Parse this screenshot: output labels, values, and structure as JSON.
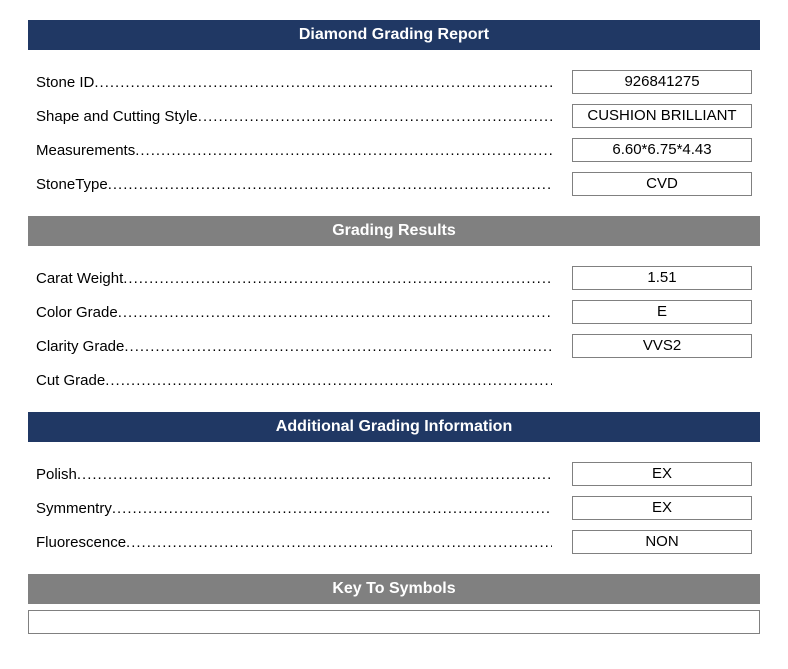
{
  "colors": {
    "primary_header_bg": "#203864",
    "secondary_header_bg": "#808080",
    "header_text": "#ffffff",
    "body_text": "#000000",
    "box_border": "#808080",
    "box_bg": "#ffffff"
  },
  "typography": {
    "header_fontsize": 16,
    "body_fontsize": 15,
    "font_family": "Arial, sans-serif"
  },
  "sections": {
    "main": {
      "title": "Diamond Grading Report",
      "rows": [
        {
          "label": "Stone ID",
          "value": "926841275"
        },
        {
          "label": "Shape and Cutting Style",
          "value": "CUSHION BRILLIANT"
        },
        {
          "label": "Measurements",
          "value": "6.60*6.75*4.43"
        },
        {
          "label": "StoneType",
          "value": "CVD"
        }
      ]
    },
    "grading": {
      "title": "Grading Results",
      "rows": [
        {
          "label": "Carat Weight",
          "value": "1.51"
        },
        {
          "label": "Color Grade",
          "value": "E"
        },
        {
          "label": "Clarity Grade",
          "value": "VVS2"
        },
        {
          "label": "Cut Grade",
          "value": null
        }
      ]
    },
    "additional": {
      "title": "Additional Grading Information",
      "rows": [
        {
          "label": "Polish",
          "value": "EX"
        },
        {
          "label": "Symmentry",
          "value": "EX"
        },
        {
          "label": "Fluorescence",
          "value": "NON"
        }
      ]
    },
    "symbols": {
      "title": "Key To Symbols"
    }
  }
}
